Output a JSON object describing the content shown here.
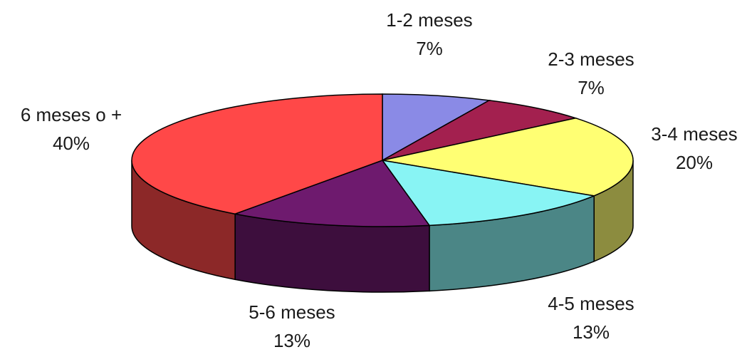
{
  "chart_data": {
    "type": "pie3d",
    "categories": [
      "1-2 meses",
      "2-3 meses",
      "3-4 meses",
      "4-5 meses",
      "5-6 meses",
      "6 meses o +"
    ],
    "values": [
      7,
      7,
      20,
      13,
      13,
      40
    ],
    "value_labels": [
      "7%",
      "7%",
      "20%",
      "13%",
      "13%",
      "40%"
    ],
    "colors": [
      "#8a8ae6",
      "#a3204f",
      "#ffff73",
      "#88f4f4",
      "#6e1a6e",
      "#ff4848"
    ]
  }
}
